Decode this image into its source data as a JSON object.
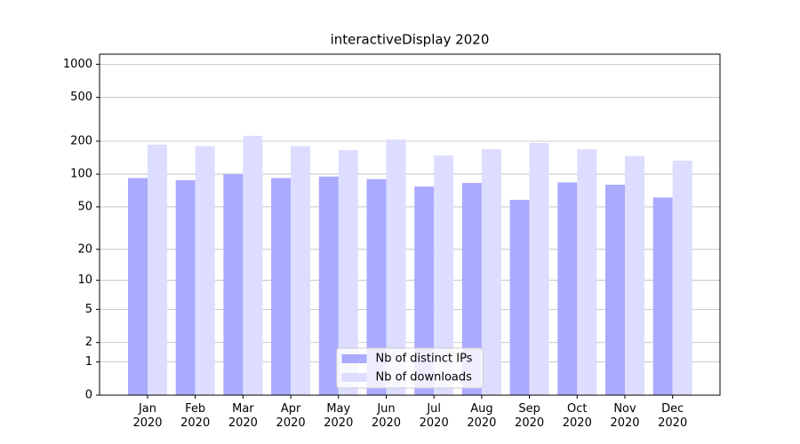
{
  "chart_data": {
    "type": "bar",
    "title": "interactiveDisplay 2020",
    "categories": [
      "Jan\n2020",
      "Feb\n2020",
      "Mar\n2020",
      "Apr\n2020",
      "May\n2020",
      "Jun\n2020",
      "Jul\n2020",
      "Aug\n2020",
      "Sep\n2020",
      "Oct\n2020",
      "Nov\n2020",
      "Dec\n2020"
    ],
    "series": [
      {
        "name": "Nb of distinct IPs",
        "color": "#aaaaff",
        "values": [
          92,
          88,
          100,
          92,
          95,
          90,
          77,
          83,
          58,
          84,
          80,
          61
        ]
      },
      {
        "name": "Nb of downloads",
        "color": "#ddddff",
        "values": [
          186,
          180,
          224,
          180,
          166,
          207,
          148,
          169,
          193,
          169,
          147,
          133
        ]
      }
    ],
    "yscale": "log1p",
    "ylim": [
      0,
      1235
    ],
    "yticks": [
      0,
      1,
      2,
      5,
      10,
      20,
      50,
      100,
      200,
      500,
      1000
    ],
    "grid": true,
    "legend": "lower center"
  }
}
